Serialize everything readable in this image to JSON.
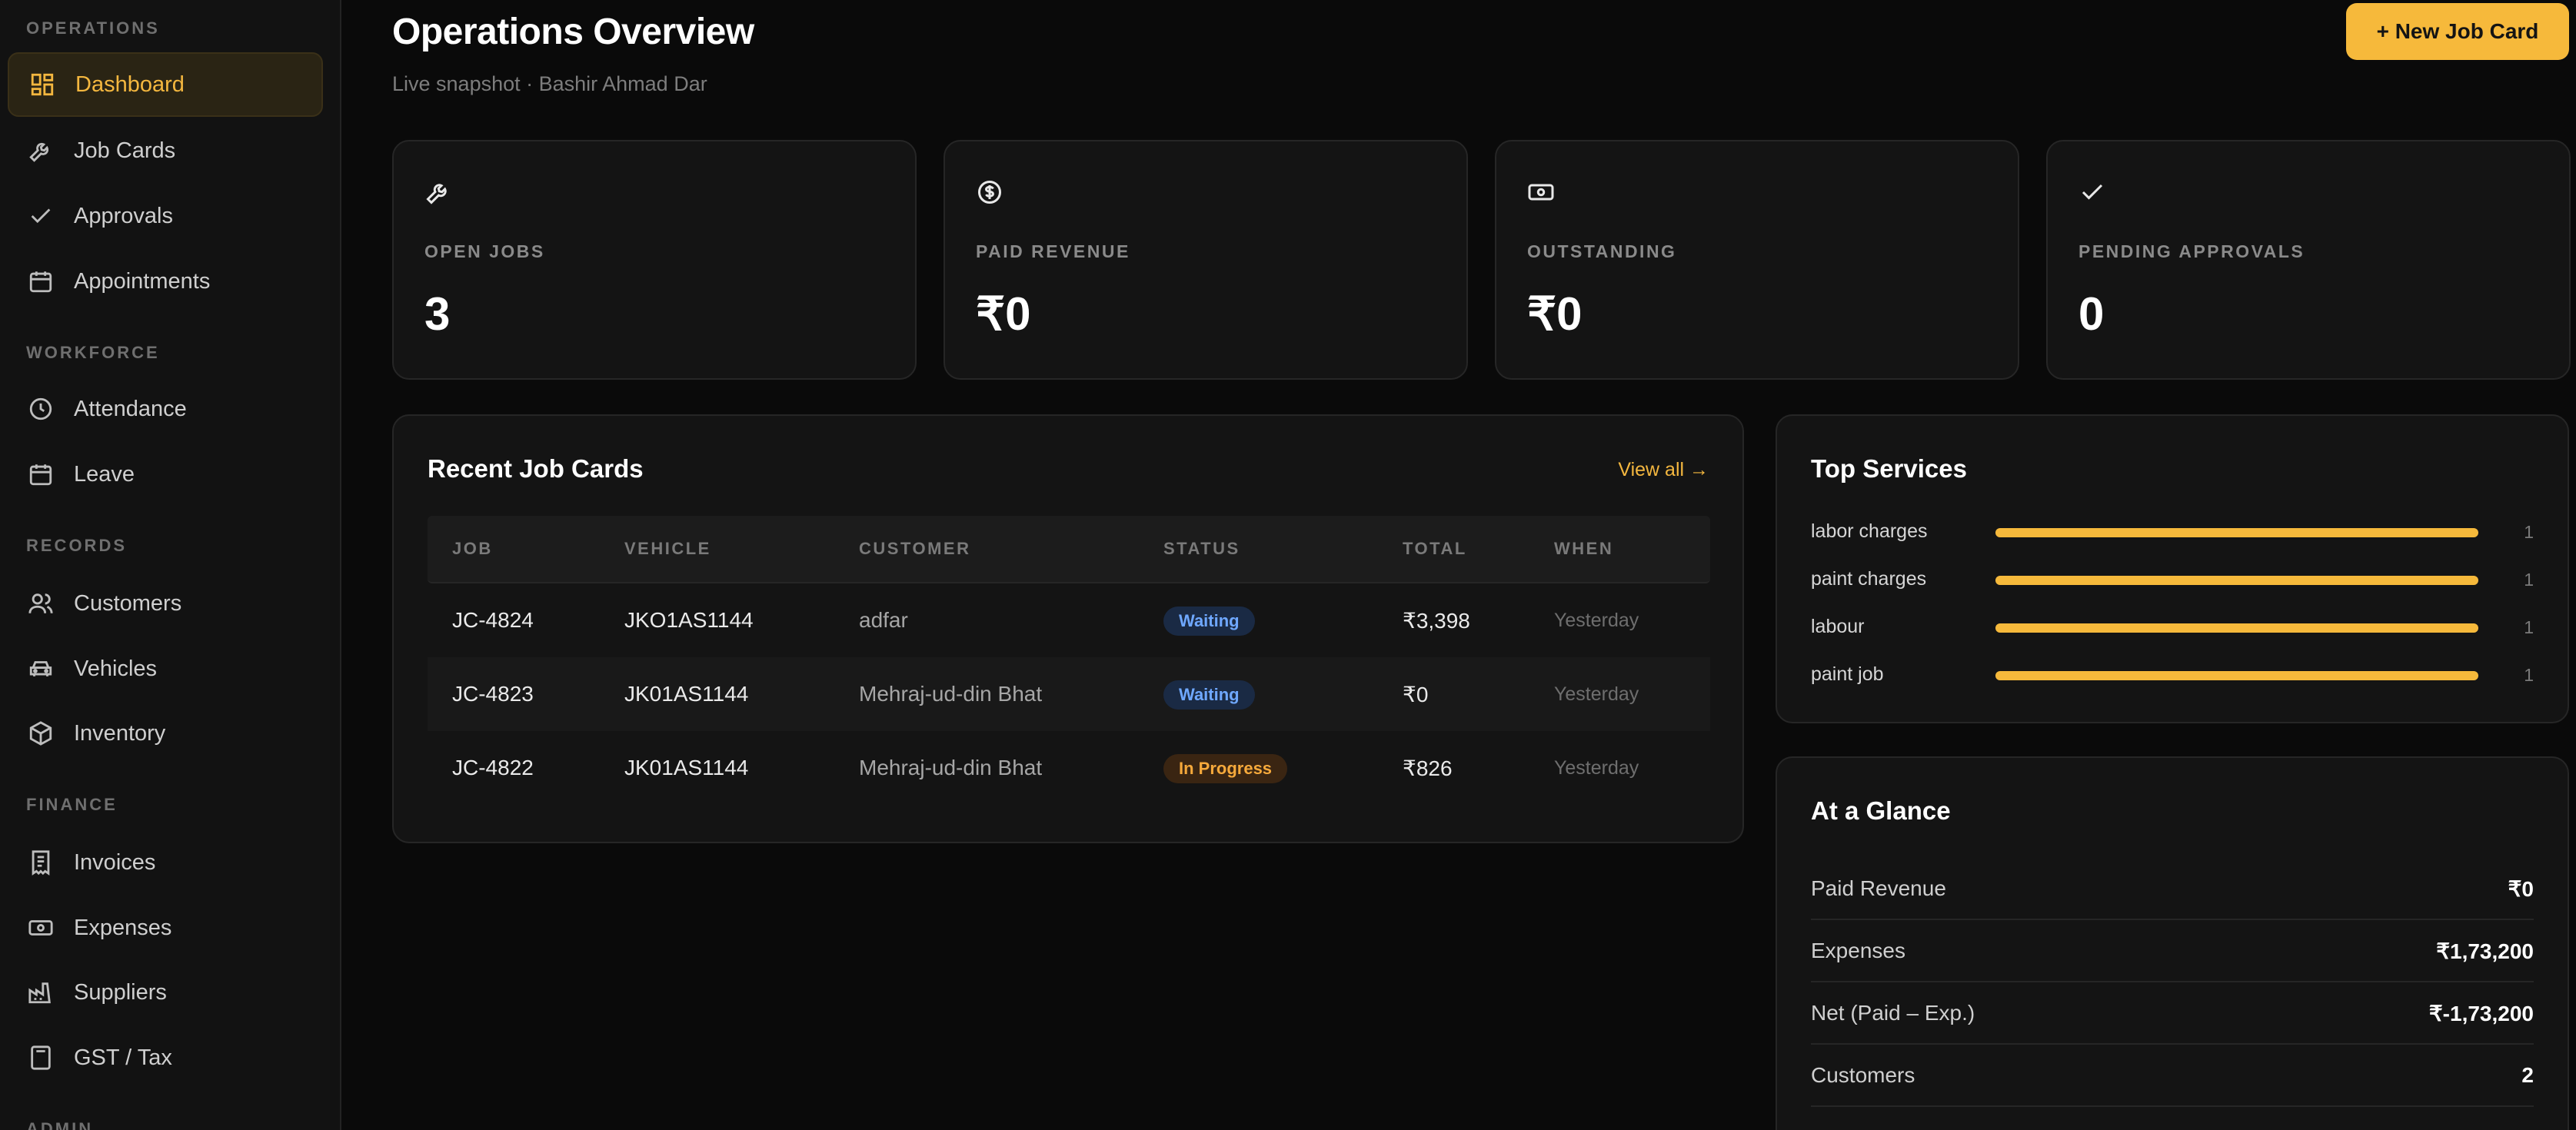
{
  "sidebar": {
    "sections": [
      {
        "label": "OPERATIONS"
      },
      {
        "label": "WORKFORCE"
      },
      {
        "label": "RECORDS"
      },
      {
        "label": "FINANCE"
      },
      {
        "label": "ADMIN"
      }
    ],
    "items": [
      {
        "label": "Dashboard",
        "icon": "dashboard-icon",
        "active": true
      },
      {
        "label": "Job Cards",
        "icon": "wrench-icon"
      },
      {
        "label": "Approvals",
        "icon": "check-icon"
      },
      {
        "label": "Appointments",
        "icon": "calendar-icon"
      },
      {
        "label": "Attendance",
        "icon": "clock-icon"
      },
      {
        "label": "Leave",
        "icon": "calendar-icon"
      },
      {
        "label": "Customers",
        "icon": "users-icon"
      },
      {
        "label": "Vehicles",
        "icon": "car-icon"
      },
      {
        "label": "Inventory",
        "icon": "box-icon"
      },
      {
        "label": "Invoices",
        "icon": "receipt-icon"
      },
      {
        "label": "Expenses",
        "icon": "banknote-icon"
      },
      {
        "label": "Suppliers",
        "icon": "factory-icon"
      },
      {
        "label": "GST / Tax",
        "icon": "calculator-icon"
      }
    ]
  },
  "header": {
    "title": "Operations Overview",
    "subtitle": "Live snapshot · Bashir Ahmad Dar",
    "new_button": "+ New Job Card"
  },
  "stats": [
    {
      "label": "OPEN JOBS",
      "value": "3",
      "icon": "wrench-icon"
    },
    {
      "label": "PAID REVENUE",
      "value": "₹0",
      "icon": "dollar-circle-icon"
    },
    {
      "label": "OUTSTANDING",
      "value": "₹0",
      "icon": "banknote-icon"
    },
    {
      "label": "PENDING APPROVALS",
      "value": "0",
      "icon": "check-icon"
    }
  ],
  "recent": {
    "title": "Recent Job Cards",
    "view_all": "View all →",
    "columns": [
      "JOB",
      "VEHICLE",
      "CUSTOMER",
      "STATUS",
      "TOTAL",
      "WHEN"
    ],
    "rows": [
      {
        "job": "JC-4824",
        "vehicle": "JKO1AS1144",
        "customer": "adfar",
        "status": "Waiting",
        "total": "₹3,398",
        "when": "Yesterday"
      },
      {
        "job": "JC-4823",
        "vehicle": "JK01AS1144",
        "customer": "Mehraj-ud-din Bhat",
        "status": "Waiting",
        "total": "₹0",
        "when": "Yesterday"
      },
      {
        "job": "JC-4822",
        "vehicle": "JK01AS1144",
        "customer": "Mehraj-ud-din Bhat",
        "status": "In Progress",
        "total": "₹826",
        "when": "Yesterday"
      }
    ]
  },
  "top_services": {
    "title": "Top Services",
    "items": [
      {
        "name": "labor charges",
        "count": "1",
        "fraction": 1.0
      },
      {
        "name": "paint charges",
        "count": "1",
        "fraction": 1.0
      },
      {
        "name": "labour",
        "count": "1",
        "fraction": 1.0
      },
      {
        "name": "paint job",
        "count": "1",
        "fraction": 1.0
      }
    ]
  },
  "glance": {
    "title": "At a Glance",
    "rows": [
      {
        "label": "Paid Revenue",
        "value": "₹0"
      },
      {
        "label": "Expenses",
        "value": "₹1,73,200"
      },
      {
        "label": "Net (Paid – Exp.)",
        "value": "₹-1,73,200"
      },
      {
        "label": "Customers",
        "value": "2"
      }
    ]
  },
  "colors": {
    "accent": "#f6b93b",
    "background": "#0a0a0a",
    "card": "#141414",
    "waiting": "#6fa8ff",
    "in_progress": "#f6a93b"
  }
}
